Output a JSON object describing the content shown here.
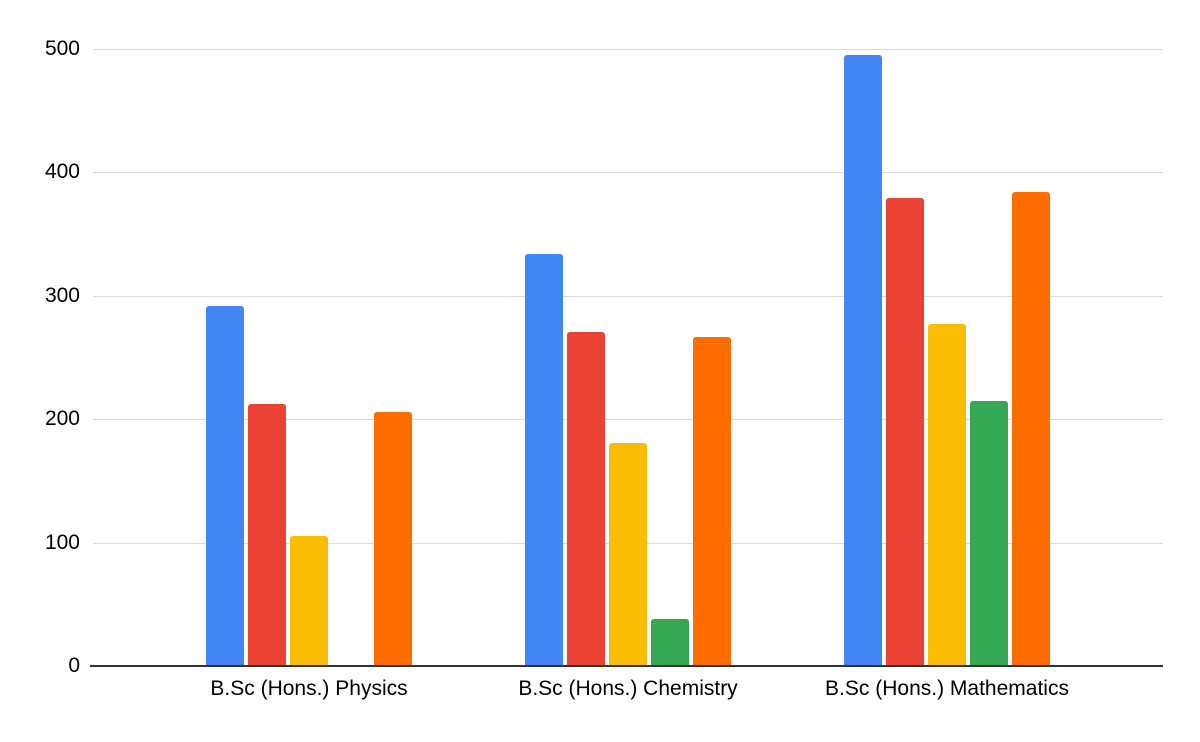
{
  "chart_data": {
    "type": "bar",
    "title": "",
    "xlabel": "",
    "ylabel": "",
    "categories": [
      "B.Sc (Hons.) Physics",
      "B.Sc (Hons.) Chemistry",
      "B.Sc (Hons.) Mathematics"
    ],
    "series": [
      {
        "name": "blue",
        "color": "#4285F4",
        "values": [
          292,
          334,
          495
        ]
      },
      {
        "name": "red",
        "color": "#EA4335",
        "values": [
          212,
          271,
          379
        ]
      },
      {
        "name": "yellow",
        "color": "#FBBC04",
        "values": [
          105,
          181,
          277
        ]
      },
      {
        "name": "green",
        "color": "#34A853",
        "values": [
          0,
          38,
          215
        ]
      },
      {
        "name": "orange",
        "color": "#FF6D01",
        "values": [
          206,
          267,
          384
        ]
      }
    ],
    "ylim": [
      0,
      500
    ],
    "yticks": [
      0,
      100,
      200,
      300,
      400,
      500
    ],
    "grid": true,
    "legend": "none",
    "colors": {
      "background": "#FFFFFF",
      "gridline": "#DADCE0",
      "axis_line": "#333333",
      "tick_label": "#000000",
      "category_label": "#000000"
    }
  }
}
